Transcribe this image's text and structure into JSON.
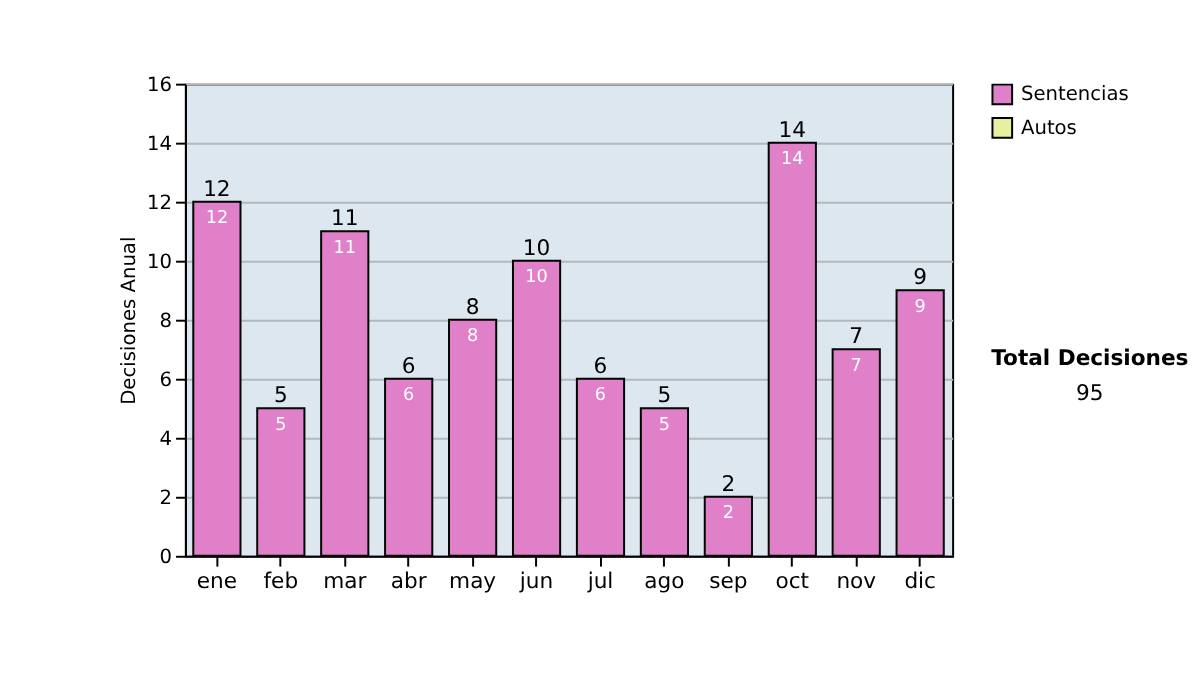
{
  "chart_data": {
    "type": "bar",
    "ylabel": "Decisiones Anual",
    "categories": [
      "ene",
      "feb",
      "mar",
      "abr",
      "may",
      "jun",
      "jul",
      "ago",
      "sep",
      "oct",
      "nov",
      "dic"
    ],
    "series": [
      {
        "name": "Sentencias",
        "color": "#e080c8",
        "values": [
          12,
          5,
          11,
          6,
          8,
          10,
          6,
          5,
          2,
          14,
          7,
          9
        ],
        "value_labels": [
          "12",
          "5",
          "11",
          "6",
          "8",
          "10",
          "6",
          "5",
          "2",
          "14",
          "7",
          "9"
        ]
      },
      {
        "name": "Autos",
        "color": "#e8f0a0",
        "values": [
          null,
          null,
          null,
          null,
          null,
          null,
          null,
          null,
          null,
          null,
          null,
          null
        ]
      }
    ],
    "stacked": true,
    "totals": [
      "12",
      "5",
      "11",
      "6",
      "8",
      "10",
      "6",
      "5",
      "2",
      "14",
      "7",
      "9"
    ],
    "ylim": [
      0,
      16
    ],
    "yticks": [
      0,
      2,
      4,
      6,
      8,
      10,
      12,
      14,
      16
    ],
    "grid": "y",
    "legend": "right",
    "annotations": [
      "Total Decisiones",
      "95"
    ]
  }
}
